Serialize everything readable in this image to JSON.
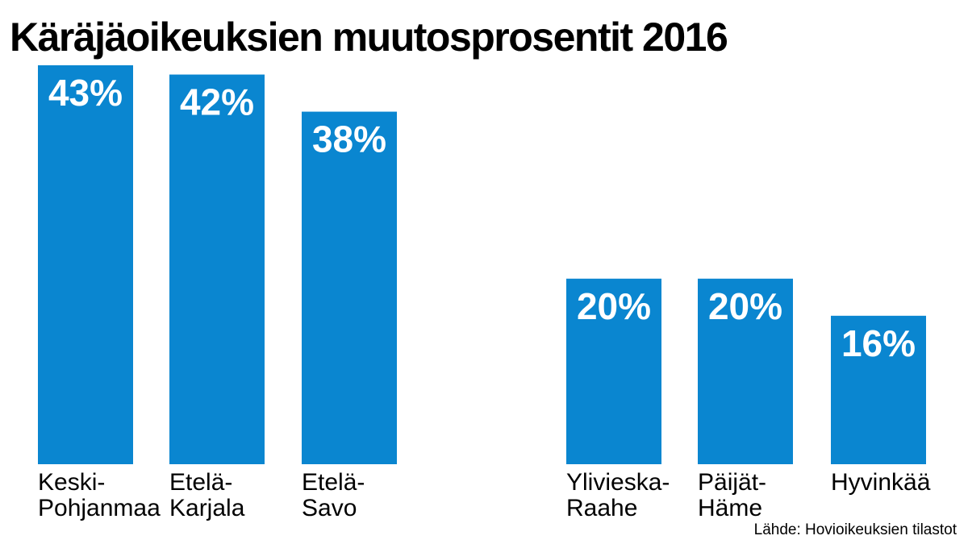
{
  "chart_data": {
    "type": "bar",
    "title": "Käräjäoikeuksien muutosprosentit 2016",
    "categories": [
      [
        "Keski-",
        "Pohjanmaa"
      ],
      [
        "Etelä-",
        "Karjala"
      ],
      [
        "Etelä-",
        "Savo"
      ],
      [
        "Ylivieska-",
        "Raahe"
      ],
      [
        "Päijät-",
        "Häme"
      ],
      [
        "Hyvinkää"
      ]
    ],
    "values": [
      43,
      42,
      38,
      20,
      20,
      16
    ],
    "value_labels": [
      "43%",
      "42%",
      "38%",
      "20%",
      "20%",
      "16%"
    ],
    "unit": "%",
    "ylim": [
      0,
      43
    ],
    "grid": false,
    "legend": "none",
    "bar_color": "#0a86d0",
    "source": "Lähde: Hovioikeuksien tilastot"
  }
}
